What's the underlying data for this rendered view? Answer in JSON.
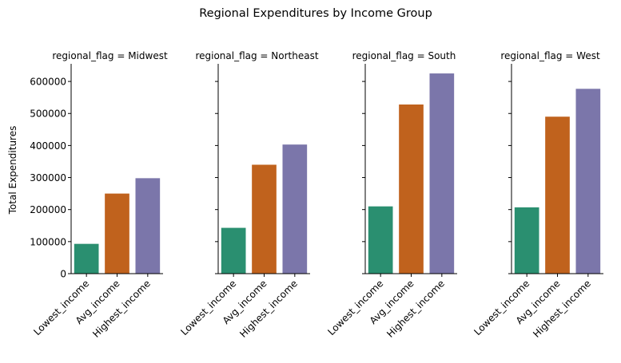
{
  "chart_data": {
    "type": "bar",
    "title": "Regional Expenditures by Income Group",
    "ylabel": "Total Expenditures",
    "xlabel": "",
    "categories": [
      "Lowest_income",
      "Avg_income",
      "Highest_income"
    ],
    "ylim": [
      0,
      655000
    ],
    "yticks": [
      0,
      100000,
      200000,
      300000,
      400000,
      500000,
      600000
    ],
    "ytick_labels": [
      "0",
      "100000",
      "200000",
      "300000",
      "400000",
      "500000",
      "600000"
    ],
    "colors": {
      "Lowest_income": "#2a8f70",
      "Avg_income": "#c0621d",
      "Highest_income": "#7b76aa"
    },
    "panels": [
      {
        "label": "regional_flag = Midwest",
        "values": [
          93000,
          250000,
          298000
        ]
      },
      {
        "label": "regional_flag = Northeast",
        "values": [
          143000,
          340000,
          403000
        ]
      },
      {
        "label": "regional_flag = South",
        "values": [
          210000,
          528000,
          625000
        ]
      },
      {
        "label": "regional_flag = West",
        "values": [
          207000,
          490000,
          577000
        ]
      }
    ],
    "grid": false,
    "legend": "none"
  }
}
